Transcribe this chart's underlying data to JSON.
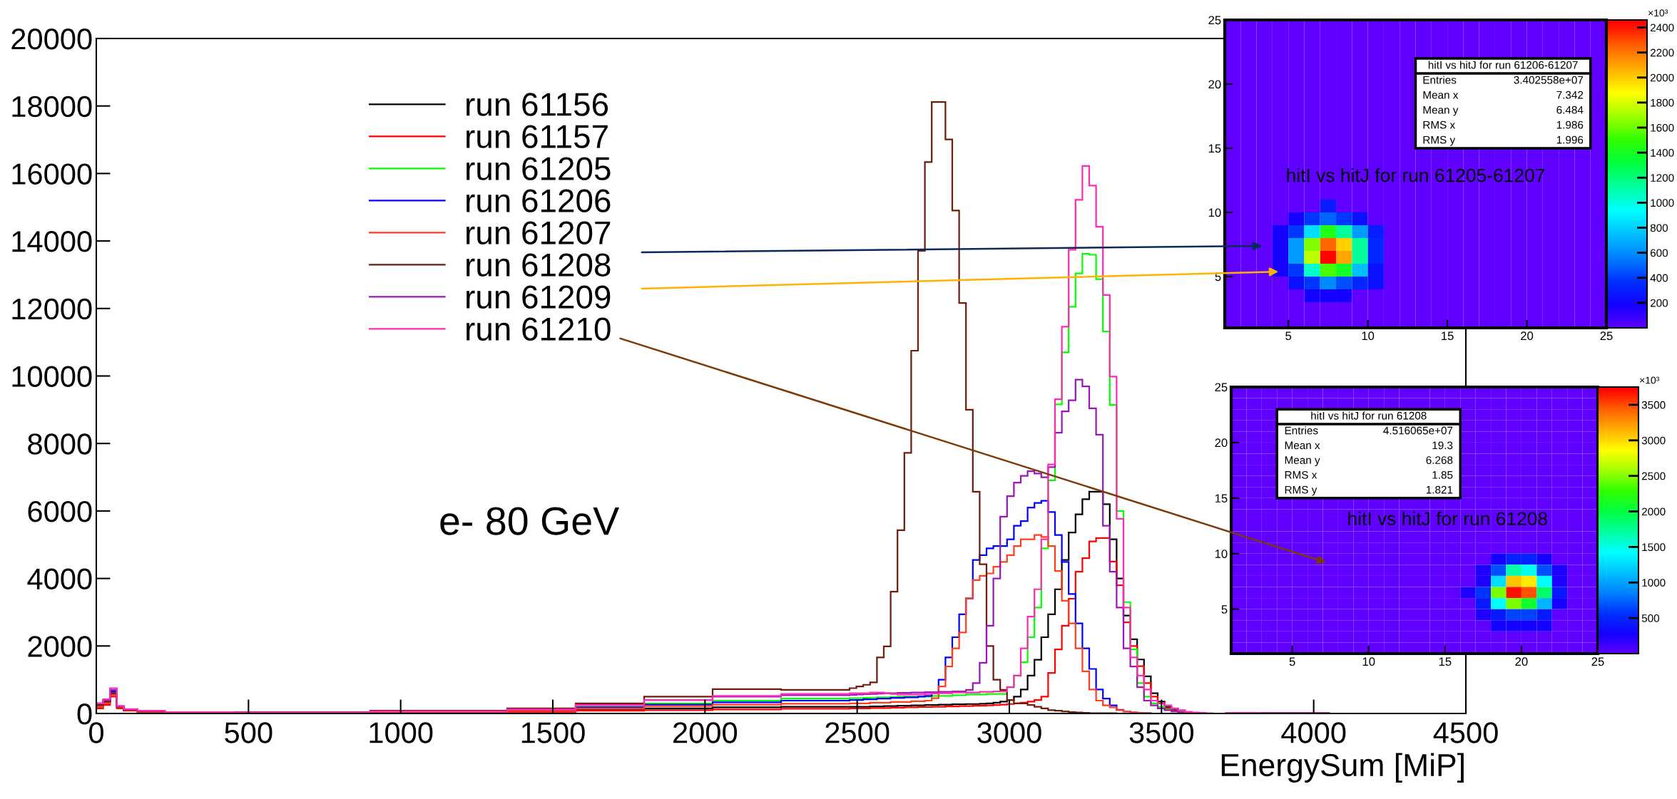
{
  "chart_data": [
    {
      "type": "histogram",
      "xlabel": "EnergySum [MiP]",
      "annotations": [
        "e- 80 GeV"
      ],
      "xlim": [
        0,
        4500
      ],
      "xticks": [
        0,
        500,
        1000,
        1500,
        2000,
        2500,
        3000,
        3500,
        4000,
        4500
      ],
      "ylim": [
        0,
        20000
      ],
      "yticks": [
        0,
        2000,
        4000,
        6000,
        8000,
        10000,
        12000,
        14000,
        16000,
        18000,
        20000
      ],
      "legend": "top left",
      "grid": false,
      "bins": [
        0,
        22.5,
        45,
        67.5,
        90,
        135,
        225,
        450,
        900,
        1350,
        1575,
        1800,
        2025,
        2250,
        2475,
        2497.5,
        2520,
        2542.5,
        2565,
        2587.5,
        2610,
        2632.5,
        2655,
        2677.5,
        2700,
        2722.5,
        2745,
        2767.5,
        2790,
        2812.5,
        2835,
        2857.5,
        2880,
        2902.5,
        2925,
        2947.5,
        2970,
        2992.5,
        3015,
        3037.5,
        3060,
        3082.5,
        3105,
        3127.5,
        3150,
        3172.5,
        3195,
        3217.5,
        3240,
        3262.5,
        3285,
        3307.5,
        3330,
        3352.5,
        3375,
        3397.5,
        3420,
        3442.5,
        3465,
        3487.5,
        3510,
        3532.5,
        3555,
        3577.5,
        3600,
        3622.5,
        3645,
        3667.5,
        3690,
        3712.5,
        3825,
        4050,
        4500
      ],
      "series": [
        {
          "name": "run 61156",
          "color": "#000000",
          "values": [
            200,
            300,
            600,
            180,
            100,
            60,
            30,
            20,
            30,
            60,
            100,
            150,
            180,
            200,
            200,
            200,
            200,
            210,
            210,
            220,
            220,
            230,
            230,
            240,
            240,
            250,
            250,
            260,
            260,
            270,
            270,
            280,
            280,
            290,
            300,
            320,
            350,
            400,
            500,
            710,
            1120,
            1590,
            2260,
            2940,
            3680,
            4550,
            5360,
            5900,
            6350,
            6570,
            6570,
            6200,
            5160,
            4000,
            2900,
            2200,
            1600,
            1100,
            600,
            350,
            200,
            100,
            50,
            30,
            20,
            10,
            0,
            0,
            0,
            20,
            10,
            0
          ]
        },
        {
          "name": "run 61157",
          "color": "#ff0000",
          "values": [
            150,
            250,
            500,
            150,
            80,
            50,
            20,
            20,
            20,
            50,
            80,
            100,
            120,
            140,
            150,
            150,
            150,
            160,
            160,
            160,
            170,
            170,
            180,
            180,
            190,
            190,
            200,
            200,
            210,
            210,
            220,
            220,
            230,
            230,
            240,
            250,
            260,
            280,
            300,
            320,
            350,
            400,
            500,
            1200,
            1900,
            2600,
            3400,
            4200,
            4600,
            5100,
            5200,
            5200,
            4500,
            3800,
            2700,
            2000,
            1400,
            900,
            500,
            300,
            150,
            80,
            40,
            20,
            10,
            0,
            0,
            0,
            0,
            20,
            10,
            0
          ]
        },
        {
          "name": "run 61205",
          "color": "#00ff00",
          "values": [
            300,
            400,
            700,
            200,
            120,
            80,
            40,
            30,
            50,
            100,
            200,
            300,
            380,
            440,
            450,
            450,
            460,
            470,
            480,
            480,
            490,
            500,
            500,
            500,
            500,
            500,
            520,
            520,
            520,
            540,
            540,
            560,
            560,
            560,
            580,
            580,
            580,
            780,
            1120,
            1520,
            2260,
            3140,
            4890,
            6910,
            9160,
            10700,
            12050,
            13040,
            13620,
            13590,
            12870,
            11320,
            9140,
            6000,
            3300,
            1900,
            900,
            500,
            300,
            200,
            120,
            60,
            30,
            20,
            10,
            0,
            0,
            0,
            0,
            20,
            10,
            0
          ]
        },
        {
          "name": "run 61206",
          "color": "#0000ff",
          "values": [
            250,
            350,
            650,
            200,
            110,
            70,
            40,
            30,
            50,
            100,
            180,
            260,
            330,
            380,
            400,
            400,
            420,
            420,
            440,
            440,
            460,
            460,
            480,
            480,
            500,
            520,
            600,
            1000,
            1660,
            2260,
            2940,
            3410,
            4550,
            4690,
            4890,
            4960,
            4960,
            5160,
            5560,
            5700,
            6100,
            6240,
            6300,
            5970,
            5290,
            4490,
            3540,
            2670,
            1930,
            1320,
            710,
            440,
            240,
            110,
            60,
            30,
            20,
            10,
            0,
            0,
            0,
            0,
            0,
            0,
            0,
            0,
            0,
            0,
            0,
            20,
            10,
            0
          ]
        },
        {
          "name": "run 61207",
          "color": "#ff3d1f",
          "values": [
            200,
            300,
            550,
            180,
            100,
            60,
            30,
            20,
            40,
            80,
            150,
            220,
            260,
            290,
            300,
            300,
            300,
            320,
            320,
            320,
            340,
            340,
            340,
            360,
            360,
            380,
            450,
            800,
            1390,
            1930,
            2400,
            3410,
            3950,
            4080,
            4150,
            4350,
            4490,
            4690,
            4960,
            5160,
            5160,
            5290,
            5230,
            4960,
            4220,
            3340,
            2670,
            1930,
            1250,
            710,
            380,
            240,
            180,
            100,
            60,
            30,
            20,
            10,
            0,
            0,
            0,
            0,
            0,
            0,
            0,
            0,
            0,
            0,
            0,
            20,
            10,
            0
          ]
        },
        {
          "name": "run 61208",
          "color": "#701c0c",
          "values": [
            250,
            350,
            600,
            200,
            110,
            70,
            40,
            40,
            80,
            150,
            300,
            500,
            720,
            700,
            750,
            800,
            850,
            920,
            1660,
            1990,
            3610,
            5430,
            7720,
            10750,
            13710,
            16340,
            18120,
            18120,
            17010,
            14900,
            12160,
            9000,
            6570,
            4420,
            2000,
            1000,
            700,
            400,
            300,
            300,
            250,
            200,
            150,
            100,
            80,
            60,
            40,
            30,
            20,
            10,
            10,
            10,
            10,
            0,
            0,
            0,
            0,
            0,
            0,
            0,
            0,
            0,
            0,
            0,
            0,
            0,
            0,
            0,
            0,
            0,
            0,
            0
          ]
        },
        {
          "name": "run 61209",
          "color": "#9b16b8",
          "values": [
            300,
            400,
            700,
            220,
            120,
            80,
            40,
            30,
            60,
            120,
            250,
            400,
            500,
            540,
            550,
            560,
            570,
            580,
            590,
            600,
            600,
            610,
            610,
            620,
            620,
            630,
            630,
            640,
            640,
            650,
            650,
            700,
            900,
            1500,
            2600,
            4000,
            5830,
            6440,
            6840,
            7040,
            7180,
            7110,
            7000,
            7300,
            8320,
            8950,
            9280,
            9890,
            9690,
            9040,
            8260,
            5560,
            4200,
            3140,
            1930,
            1390,
            780,
            380,
            240,
            150,
            100,
            60,
            30,
            20,
            10,
            0,
            0,
            0,
            0,
            20,
            10,
            0
          ]
        },
        {
          "name": "run 61210",
          "color": "#ff2ab4",
          "values": [
            300,
            420,
            750,
            220,
            130,
            80,
            40,
            30,
            60,
            120,
            250,
            400,
            520,
            580,
            600,
            600,
            600,
            620,
            620,
            600,
            580,
            560,
            560,
            560,
            560,
            580,
            600,
            600,
            600,
            620,
            620,
            620,
            620,
            640,
            640,
            650,
            650,
            780,
            1120,
            1930,
            2870,
            3680,
            5160,
            7380,
            9310,
            11460,
            13740,
            15220,
            16220,
            15640,
            14420,
            12400,
            9980,
            5770,
            3140,
            1660,
            1120,
            710,
            380,
            310,
            240,
            150,
            100,
            50,
            30,
            20,
            10,
            0,
            0,
            20,
            10,
            0
          ]
        }
      ]
    },
    {
      "type": "heatmap",
      "title": "hitI vs hitJ for run 61205-61207",
      "annotations": [
        "hitI vs hitJ for run 61206-61207",
        "Entries",
        "3.402558e+07",
        "Mean x",
        "7.342",
        "Mean y",
        "6.484",
        "RMS x",
        "1.986",
        "RMS y",
        "1.996"
      ],
      "xlim": [
        1,
        25
      ],
      "xticks": [
        5,
        10,
        15,
        20,
        25
      ],
      "ylim": [
        1,
        25
      ],
      "yticks": [
        5,
        10,
        15,
        20,
        25
      ],
      "clim": [
        0,
        2460
      ],
      "cticks": [
        200,
        400,
        600,
        800,
        1000,
        1200,
        1400,
        1600,
        1800,
        2000,
        2200,
        2400
      ],
      "clabel": "×10³",
      "cells": [
        [
          0,
          0,
          0,
          0,
          0,
          0,
          0,
          0,
          0,
          0,
          0,
          0,
          0,
          0,
          0,
          0,
          0,
          0,
          0,
          0,
          0,
          0,
          0,
          0
        ],
        [
          0,
          0,
          0,
          0,
          0,
          0,
          0,
          0,
          0,
          0,
          0,
          0,
          0,
          0,
          0,
          0,
          0,
          0,
          0,
          0,
          0,
          0,
          0,
          0
        ],
        [
          0,
          0,
          0,
          0,
          0,
          0,
          0,
          0,
          0,
          0,
          0,
          0,
          0,
          0,
          0,
          0,
          0,
          0,
          0,
          0,
          0,
          0,
          0,
          0
        ],
        [
          0,
          0,
          0,
          0,
          0,
          0,
          0,
          0,
          0,
          0,
          0,
          0,
          null,
          null,
          null,
          null,
          null,
          null,
          null,
          null,
          null,
          null,
          null,
          0
        ],
        [
          0,
          0,
          0,
          0,
          0,
          0,
          0,
          0,
          0,
          0,
          0,
          0,
          null,
          null,
          null,
          null,
          null,
          null,
          null,
          null,
          null,
          null,
          null,
          0
        ],
        [
          0,
          0,
          0,
          0,
          0,
          0,
          0,
          0,
          0,
          0,
          0,
          0,
          null,
          null,
          null,
          null,
          null,
          null,
          null,
          null,
          null,
          null,
          null,
          0
        ],
        [
          0,
          0,
          0,
          0,
          0,
          0,
          0,
          0,
          0,
          0,
          0,
          0,
          null,
          null,
          null,
          null,
          null,
          null,
          null,
          null,
          null,
          null,
          null,
          0
        ],
        [
          0,
          0,
          0,
          0,
          0,
          0,
          0,
          0,
          0,
          0,
          0,
          0,
          null,
          null,
          null,
          null,
          null,
          null,
          null,
          null,
          null,
          null,
          null,
          0
        ],
        [
          0,
          0,
          0,
          0,
          0,
          0,
          0,
          0,
          0,
          0,
          0,
          0,
          null,
          null,
          null,
          null,
          null,
          null,
          null,
          null,
          null,
          null,
          null,
          0
        ],
        [
          0,
          0,
          0,
          0,
          0,
          0,
          0,
          0,
          0,
          0,
          0,
          0,
          null,
          null,
          null,
          null,
          null,
          null,
          null,
          null,
          null,
          null,
          null,
          0
        ],
        [
          0,
          0,
          0,
          0,
          0,
          0,
          0,
          0,
          0,
          0,
          0,
          0,
          0,
          0,
          0,
          0,
          0,
          0,
          0,
          0,
          0,
          0,
          0,
          0
        ],
        [
          0,
          0,
          0,
          0,
          0,
          0,
          0,
          0,
          0,
          0,
          0,
          0,
          0,
          0,
          0,
          0,
          0,
          0,
          0,
          0,
          0,
          0,
          0,
          0
        ],
        [
          0,
          0,
          0,
          0,
          0,
          0,
          0,
          0,
          0,
          0,
          0,
          0,
          0,
          0,
          0,
          0,
          0,
          0,
          0,
          0,
          0,
          0,
          0,
          0
        ],
        [
          0,
          0,
          0,
          0,
          0,
          0,
          0,
          0,
          0,
          0,
          0,
          0,
          0,
          0,
          0,
          0,
          0,
          0,
          0,
          0,
          0,
          0,
          0,
          0
        ],
        [
          0,
          0,
          0,
          0,
          0,
          0,
          300,
          0,
          0,
          0,
          0,
          0,
          0,
          0,
          0,
          0,
          0,
          0,
          0,
          0,
          0,
          0,
          0,
          0
        ],
        [
          0,
          0,
          0,
          0,
          200,
          400,
          500,
          400,
          250,
          0,
          0,
          0,
          0,
          0,
          0,
          0,
          0,
          0,
          0,
          0,
          0,
          0,
          0,
          0
        ],
        [
          0,
          0,
          0,
          200,
          400,
          850,
          1450,
          1150,
          650,
          300,
          0,
          0,
          0,
          0,
          0,
          0,
          0,
          0,
          0,
          0,
          0,
          0,
          0,
          0
        ],
        [
          0,
          0,
          0,
          200,
          650,
          1650,
          2250,
          2000,
          1150,
          350,
          0,
          0,
          0,
          0,
          0,
          0,
          0,
          0,
          0,
          0,
          0,
          0,
          0,
          0
        ],
        [
          0,
          0,
          0,
          200,
          650,
          1750,
          2450,
          2100,
          1150,
          350,
          0,
          0,
          0,
          0,
          0,
          0,
          0,
          0,
          0,
          0,
          0,
          0,
          0,
          0
        ],
        [
          0,
          0,
          0,
          200,
          400,
          1050,
          1550,
          1400,
          750,
          250,
          0,
          0,
          0,
          0,
          0,
          0,
          0,
          0,
          0,
          0,
          0,
          0,
          0,
          0
        ],
        [
          0,
          0,
          0,
          0,
          250,
          400,
          600,
          450,
          350,
          250,
          0,
          0,
          0,
          0,
          0,
          0,
          0,
          0,
          0,
          0,
          0,
          0,
          0,
          0
        ],
        [
          0,
          0,
          0,
          0,
          0,
          200,
          200,
          200,
          0,
          0,
          0,
          0,
          0,
          0,
          0,
          0,
          0,
          0,
          0,
          0,
          0,
          0,
          0,
          0
        ],
        [
          0,
          0,
          0,
          0,
          0,
          0,
          0,
          0,
          0,
          0,
          0,
          0,
          0,
          0,
          0,
          0,
          0,
          0,
          0,
          0,
          0,
          0,
          0,
          0
        ],
        [
          0,
          0,
          0,
          0,
          0,
          0,
          0,
          0,
          0,
          0,
          0,
          0,
          0,
          0,
          0,
          0,
          0,
          0,
          0,
          0,
          0,
          0,
          0,
          0
        ]
      ]
    },
    {
      "type": "heatmap",
      "title": "hitI vs hitJ for run 61208",
      "annotations": [
        "hitI vs hitJ for run 61208",
        "Entries",
        "4.516065e+07",
        "Mean x",
        "19.3",
        "Mean y",
        "6.268",
        "RMS x",
        "1.85",
        "RMS y",
        "1.821"
      ],
      "xlim": [
        1,
        25
      ],
      "xticks": [
        5,
        10,
        15,
        20,
        25
      ],
      "ylim": [
        1,
        25
      ],
      "yticks": [
        5,
        10,
        15,
        20,
        25
      ],
      "clim": [
        0,
        3750
      ],
      "cticks": [
        500,
        1000,
        1500,
        2000,
        2500,
        3000,
        3500
      ],
      "clabel": "×10³",
      "cells": [
        [
          0,
          0,
          0,
          0,
          0,
          0,
          0,
          0,
          0,
          0,
          0,
          0,
          0,
          0,
          0,
          0,
          0,
          0,
          0,
          0,
          0,
          0,
          0,
          0
        ],
        [
          0,
          0,
          0,
          0,
          0,
          0,
          0,
          0,
          0,
          0,
          0,
          0,
          0,
          0,
          0,
          0,
          0,
          0,
          0,
          0,
          0,
          0,
          0,
          0
        ],
        [
          0,
          0,
          0,
          null,
          null,
          null,
          null,
          null,
          null,
          null,
          null,
          null,
          null,
          null,
          null,
          0,
          0,
          0,
          0,
          0,
          0,
          0,
          0,
          0
        ],
        [
          0,
          0,
          0,
          null,
          null,
          null,
          null,
          null,
          null,
          null,
          null,
          null,
          null,
          null,
          null,
          0,
          0,
          0,
          0,
          0,
          0,
          0,
          0,
          0
        ],
        [
          0,
          0,
          0,
          null,
          null,
          null,
          null,
          null,
          null,
          null,
          null,
          null,
          null,
          null,
          null,
          0,
          0,
          0,
          0,
          0,
          0,
          0,
          0,
          0
        ],
        [
          0,
          0,
          0,
          null,
          null,
          null,
          null,
          null,
          null,
          null,
          null,
          null,
          null,
          null,
          null,
          0,
          0,
          0,
          0,
          0,
          0,
          0,
          0,
          0
        ],
        [
          0,
          0,
          0,
          null,
          null,
          null,
          null,
          null,
          null,
          null,
          null,
          null,
          null,
          null,
          null,
          0,
          0,
          0,
          0,
          0,
          0,
          0,
          0,
          0
        ],
        [
          0,
          0,
          0,
          null,
          null,
          null,
          null,
          null,
          null,
          null,
          null,
          null,
          null,
          null,
          null,
          0,
          0,
          0,
          0,
          0,
          0,
          0,
          0,
          0
        ],
        [
          0,
          0,
          0,
          null,
          null,
          null,
          null,
          null,
          null,
          null,
          null,
          null,
          null,
          null,
          null,
          0,
          0,
          0,
          0,
          0,
          0,
          0,
          0,
          0
        ],
        [
          0,
          0,
          0,
          null,
          null,
          null,
          null,
          null,
          null,
          null,
          null,
          null,
          null,
          null,
          null,
          0,
          0,
          0,
          0,
          0,
          0,
          0,
          0,
          0
        ],
        [
          0,
          0,
          0,
          0,
          0,
          0,
          0,
          0,
          0,
          0,
          0,
          0,
          0,
          0,
          0,
          0,
          0,
          0,
          0,
          0,
          0,
          0,
          0,
          0
        ],
        [
          0,
          0,
          0,
          0,
          0,
          0,
          0,
          0,
          0,
          0,
          0,
          0,
          0,
          0,
          0,
          0,
          0,
          0,
          0,
          0,
          0,
          0,
          0,
          0
        ],
        [
          0,
          0,
          0,
          0,
          0,
          0,
          0,
          0,
          0,
          0,
          0,
          0,
          0,
          0,
          0,
          0,
          0,
          0,
          0,
          0,
          0,
          0,
          0,
          0
        ],
        [
          0,
          0,
          0,
          0,
          0,
          0,
          0,
          0,
          0,
          0,
          0,
          0,
          0,
          0,
          0,
          0,
          0,
          0,
          0,
          0,
          0,
          0,
          0,
          0
        ],
        [
          0,
          0,
          0,
          0,
          0,
          0,
          0,
          0,
          0,
          0,
          0,
          0,
          0,
          0,
          0,
          0,
          0,
          0,
          0,
          0,
          0,
          0,
          0,
          0
        ],
        [
          0,
          0,
          0,
          0,
          0,
          0,
          0,
          0,
          0,
          0,
          0,
          0,
          0,
          0,
          0,
          0,
          0,
          300,
          500,
          500,
          300,
          0,
          0,
          0
        ],
        [
          0,
          0,
          0,
          0,
          0,
          0,
          0,
          0,
          0,
          0,
          0,
          0,
          0,
          0,
          0,
          0,
          250,
          700,
          1700,
          1500,
          700,
          250,
          0,
          0
        ],
        [
          0,
          0,
          0,
          0,
          0,
          0,
          0,
          0,
          0,
          0,
          0,
          0,
          0,
          0,
          0,
          0,
          250,
          1300,
          3100,
          2950,
          1450,
          250,
          0,
          0
        ],
        [
          0,
          0,
          0,
          0,
          0,
          0,
          0,
          0,
          0,
          0,
          0,
          0,
          0,
          0,
          0,
          250,
          600,
          2500,
          3700,
          3500,
          1900,
          450,
          0,
          0
        ],
        [
          0,
          0,
          0,
          0,
          0,
          0,
          0,
          0,
          0,
          0,
          0,
          0,
          0,
          0,
          0,
          0,
          450,
          1450,
          2500,
          2100,
          1100,
          300,
          0,
          0
        ],
        [
          0,
          0,
          0,
          0,
          0,
          0,
          0,
          0,
          0,
          0,
          0,
          0,
          0,
          0,
          0,
          0,
          250,
          450,
          650,
          650,
          450,
          0,
          0,
          0
        ],
        [
          0,
          0,
          0,
          0,
          0,
          0,
          0,
          0,
          0,
          0,
          0,
          0,
          0,
          0,
          0,
          0,
          0,
          300,
          300,
          300,
          300,
          0,
          0,
          0
        ],
        [
          0,
          0,
          0,
          0,
          0,
          0,
          0,
          0,
          0,
          0,
          0,
          0,
          0,
          0,
          0,
          0,
          0,
          0,
          0,
          0,
          0,
          0,
          0,
          0
        ],
        [
          0,
          0,
          0,
          0,
          0,
          0,
          0,
          0,
          0,
          0,
          0,
          0,
          0,
          0,
          0,
          0,
          0,
          0,
          0,
          0,
          0,
          0,
          0,
          0
        ]
      ]
    }
  ]
}
